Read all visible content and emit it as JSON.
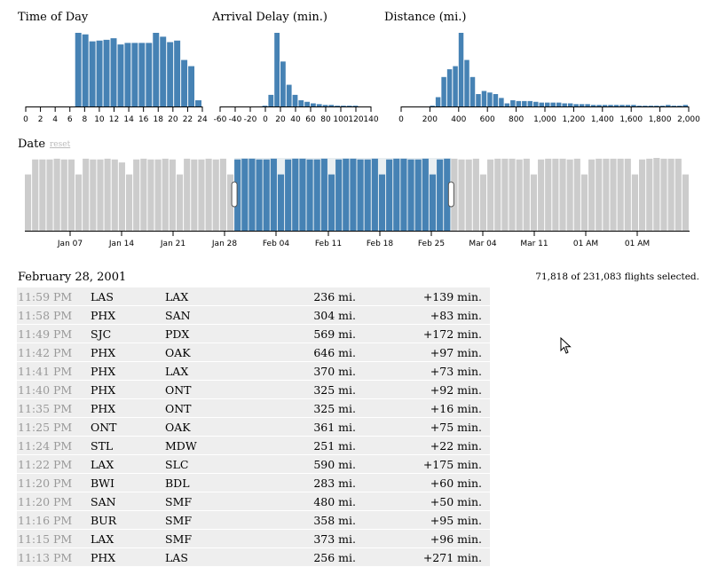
{
  "charts": {
    "time": {
      "title": "Time of Day",
      "ticks": [
        "0",
        "2",
        "4",
        "6",
        "8",
        "10",
        "12",
        "14",
        "16",
        "18",
        "20",
        "22",
        "24"
      ],
      "values": [
        0,
        0,
        0,
        0,
        0,
        0,
        0,
        95,
        93,
        84,
        85,
        86,
        88,
        80,
        82,
        82,
        82,
        82,
        95,
        90,
        83,
        85,
        60,
        52,
        8
      ],
      "brush_shaded": true
    },
    "delay": {
      "title": "Arrival Delay (min.)",
      "ticks": [
        "-60",
        "-40",
        "-20",
        "0",
        "20",
        "40",
        "60",
        "80",
        "100",
        "120",
        "140"
      ],
      "values": [
        0,
        0,
        0,
        0,
        0,
        0,
        0,
        1,
        15,
        95,
        58,
        28,
        15,
        8,
        6,
        4,
        3,
        2,
        2,
        1,
        1,
        1,
        1,
        0,
        0
      ]
    },
    "distance": {
      "title": "Distance (mi.)",
      "ticks": [
        "0",
        "200",
        "400",
        "600",
        "800",
        "1,000",
        "1,200",
        "1,400",
        "1,600",
        "1,800",
        "2,000"
      ],
      "values": [
        0,
        0,
        0,
        0,
        0,
        1,
        12,
        38,
        48,
        52,
        95,
        60,
        38,
        16,
        20,
        18,
        16,
        11,
        4,
        8,
        7,
        7,
        7,
        6,
        5,
        5,
        5,
        5,
        4,
        4,
        3,
        3,
        3,
        2,
        2,
        2,
        2,
        2,
        2,
        2,
        2,
        1,
        1,
        1,
        1,
        1,
        2,
        1,
        1,
        2
      ]
    },
    "date": {
      "title": "Date",
      "reset": "reset",
      "ticks": [
        "Jan 07",
        "Jan 14",
        "Jan 21",
        "Jan 28",
        "Feb 04",
        "Feb 11",
        "Feb 18",
        "Feb 25",
        "Mar 04",
        "Mar 11",
        "01 AM",
        "01 AM"
      ],
      "values": [
        75,
        95,
        95,
        95,
        96,
        95,
        95,
        75,
        96,
        95,
        95,
        96,
        95,
        91,
        75,
        95,
        96,
        95,
        95,
        96,
        95,
        75,
        96,
        95,
        95,
        96,
        95,
        96,
        75,
        95,
        96,
        96,
        95,
        95,
        96,
        75,
        95,
        96,
        96,
        95,
        95,
        96,
        75,
        95,
        96,
        96,
        95,
        95,
        96,
        75,
        95,
        96,
        96,
        95,
        95,
        96,
        75,
        95,
        96,
        96,
        95,
        95,
        96,
        75,
        95,
        96,
        96,
        96,
        95,
        96,
        75,
        95,
        96,
        96,
        96,
        95,
        96,
        75,
        95,
        96,
        96,
        96,
        96,
        96,
        75,
        95,
        96,
        97,
        96,
        96,
        96,
        75
      ],
      "brush_from": 29,
      "brush_to": 59
    }
  },
  "colors": {
    "selected": "#4682b4",
    "unselected": "#cccccc",
    "background_fill": "#e8eef1",
    "row_bg": "#eeeeee"
  },
  "selection": {
    "date_label": "February 28, 2001",
    "count_text": "71,818 of 231,083 flights selected."
  },
  "flights": [
    {
      "time": "11:59 PM",
      "origin": "LAS",
      "dest": "LAX",
      "distance": "236 mi.",
      "delay": "+139 min."
    },
    {
      "time": "11:58 PM",
      "origin": "PHX",
      "dest": "SAN",
      "distance": "304 mi.",
      "delay": "+83 min."
    },
    {
      "time": "11:49 PM",
      "origin": "SJC",
      "dest": "PDX",
      "distance": "569 mi.",
      "delay": "+172 min."
    },
    {
      "time": "11:42 PM",
      "origin": "PHX",
      "dest": "OAK",
      "distance": "646 mi.",
      "delay": "+97 min."
    },
    {
      "time": "11:41 PM",
      "origin": "PHX",
      "dest": "LAX",
      "distance": "370 mi.",
      "delay": "+73 min."
    },
    {
      "time": "11:40 PM",
      "origin": "PHX",
      "dest": "ONT",
      "distance": "325 mi.",
      "delay": "+92 min."
    },
    {
      "time": "11:35 PM",
      "origin": "PHX",
      "dest": "ONT",
      "distance": "325 mi.",
      "delay": "+16 min."
    },
    {
      "time": "11:25 PM",
      "origin": "ONT",
      "dest": "OAK",
      "distance": "361 mi.",
      "delay": "+75 min."
    },
    {
      "time": "11:24 PM",
      "origin": "STL",
      "dest": "MDW",
      "distance": "251 mi.",
      "delay": "+22 min."
    },
    {
      "time": "11:22 PM",
      "origin": "LAX",
      "dest": "SLC",
      "distance": "590 mi.",
      "delay": "+175 min."
    },
    {
      "time": "11:20 PM",
      "origin": "BWI",
      "dest": "BDL",
      "distance": "283 mi.",
      "delay": "+60 min."
    },
    {
      "time": "11:20 PM",
      "origin": "SAN",
      "dest": "SMF",
      "distance": "480 mi.",
      "delay": "+50 min."
    },
    {
      "time": "11:16 PM",
      "origin": "BUR",
      "dest": "SMF",
      "distance": "358 mi.",
      "delay": "+95 min."
    },
    {
      "time": "11:15 PM",
      "origin": "LAX",
      "dest": "SMF",
      "distance": "373 mi.",
      "delay": "+96 min."
    },
    {
      "time": "11:13 PM",
      "origin": "PHX",
      "dest": "LAS",
      "distance": "256 mi.",
      "delay": "+271 min."
    }
  ],
  "cursor_icon": "arrow-pointer-icon"
}
